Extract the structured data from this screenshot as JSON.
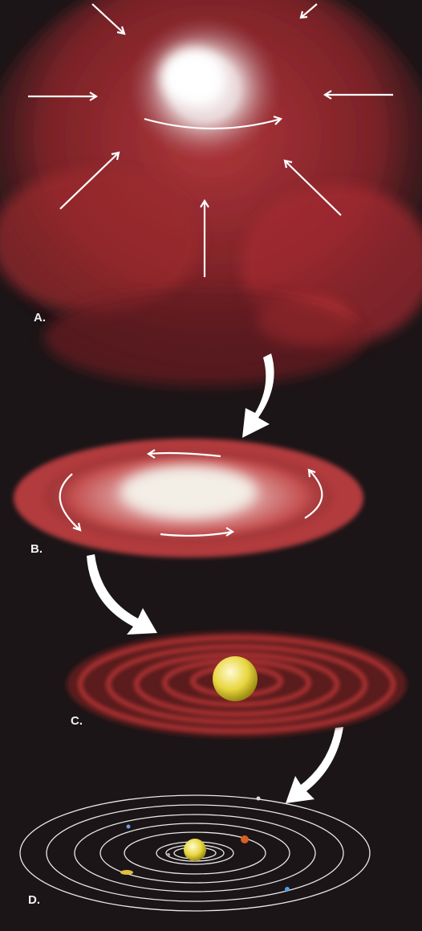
{
  "labels": {
    "a": "A.",
    "b": "B.",
    "c": "C.",
    "d": "D."
  }
}
